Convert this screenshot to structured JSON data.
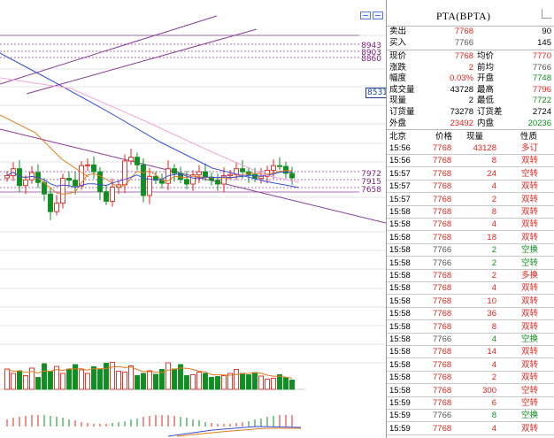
{
  "colors": {
    "up": "#e0251c",
    "down": "#0e8f21",
    "flat": "#555555",
    "purple_line": "#8a3a9c",
    "blue_ma": "#3a4fd6",
    "pink_ma": "#f2a6d6",
    "orange_ma": "#e07b1e"
  },
  "chart": {
    "price_levels": [
      "8943",
      "8903",
      "8860"
    ],
    "mid_price_tag": "8531",
    "lower_levels": [
      "7972",
      "7915",
      "7658"
    ],
    "zoom_buttons": [
      "zoom-in-icon",
      "zoom-out-icon"
    ]
  },
  "chart_data": {
    "type": "candlestick",
    "series": [
      {
        "name": "",
        "values": [
          7742,
          7760,
          7716,
          7731,
          7750,
          7724,
          7694,
          7648,
          7670,
          7735,
          7730,
          7715,
          7768,
          7770,
          7752,
          7700,
          7675,
          7712,
          7718,
          7780,
          7790,
          7770,
          7690,
          7740,
          7730,
          7722,
          7760,
          7748,
          7732,
          7720,
          7744,
          7752,
          7738,
          7730,
          7720,
          7742,
          7745,
          7760,
          7752,
          7745,
          7735,
          7740,
          7756,
          7768,
          7766,
          7748,
          7736
        ]
      },
      {
        "name": "",
        "values": [
          46,
          36,
          42,
          31,
          48,
          27,
          58,
          40,
          52,
          36,
          46,
          56,
          44,
          36,
          51,
          46,
          59,
          61,
          41,
          39,
          53,
          31,
          36,
          42,
          34,
          45,
          60,
          46,
          56,
          31,
          33,
          39,
          36,
          27,
          29,
          31,
          36,
          45,
          36,
          33,
          38,
          30,
          23,
          25,
          33,
          26,
          21
        ]
      }
    ]
  },
  "panel": {
    "title": "PTA(BPTA)",
    "sell": {
      "label": "卖出",
      "price": "7768",
      "vol": "90"
    },
    "buy": {
      "label": "买入",
      "price": "7766",
      "vol": "145"
    },
    "stats": [
      {
        "k1": "现价",
        "v1": "7768",
        "c1": "red",
        "k2": "均价",
        "v2": "7770",
        "c2": "red"
      },
      {
        "k1": "涨跌",
        "v1": "2",
        "c1": "red",
        "k2": "前均",
        "v2": "7766",
        "c2": "gray"
      },
      {
        "k1": "幅度",
        "v1": "0.03%",
        "c1": "red",
        "k2": "开盘",
        "v2": "7748",
        "c2": "green"
      },
      {
        "k1": "成交量",
        "v1": "43728",
        "c1": "blk",
        "k2": "最高",
        "v2": "7796",
        "c2": "red"
      },
      {
        "k1": "现量",
        "v1": "2",
        "c1": "blk",
        "k2": "最低",
        "v2": "7722",
        "c2": "green"
      },
      {
        "k1": "订货量",
        "v1": "73278",
        "c1": "blk",
        "k2": "订货差",
        "v2": "2724",
        "c2": "blk"
      },
      {
        "k1": "外盘",
        "v1": "23492",
        "c1": "red",
        "k2": "内盘",
        "v2": "20236",
        "c2": "green"
      }
    ],
    "trade_header": {
      "time": "北京",
      "price": "价格",
      "vol": "现量",
      "nature": "性质"
    },
    "trades": [
      {
        "time": "15:56",
        "price": "7768",
        "pc": "red",
        "vol": "43128",
        "vc": "red",
        "nature": "多订",
        "nc": "red"
      },
      {
        "time": "15:56",
        "price": "7768",
        "pc": "red",
        "vol": "8",
        "vc": "red",
        "nature": "双转",
        "nc": "red"
      },
      {
        "time": "15:57",
        "price": "7768",
        "pc": "red",
        "vol": "24",
        "vc": "red",
        "nature": "空转",
        "nc": "red"
      },
      {
        "time": "15:57",
        "price": "7768",
        "pc": "red",
        "vol": "4",
        "vc": "red",
        "nature": "双转",
        "nc": "red"
      },
      {
        "time": "15:57",
        "price": "7768",
        "pc": "red",
        "vol": "2",
        "vc": "red",
        "nature": "双转",
        "nc": "red"
      },
      {
        "time": "15:58",
        "price": "7768",
        "pc": "red",
        "vol": "8",
        "vc": "red",
        "nature": "双转",
        "nc": "red"
      },
      {
        "time": "15:58",
        "price": "7768",
        "pc": "red",
        "vol": "4",
        "vc": "red",
        "nature": "双转",
        "nc": "red"
      },
      {
        "time": "15:58",
        "price": "7768",
        "pc": "red",
        "vol": "18",
        "vc": "red",
        "nature": "双转",
        "nc": "red"
      },
      {
        "time": "15:58",
        "price": "7766",
        "pc": "gray",
        "vol": "2",
        "vc": "green",
        "nature": "空换",
        "nc": "green"
      },
      {
        "time": "15:58",
        "price": "7766",
        "pc": "gray",
        "vol": "2",
        "vc": "green",
        "nature": "空转",
        "nc": "green"
      },
      {
        "time": "15:58",
        "price": "7768",
        "pc": "red",
        "vol": "2",
        "vc": "red",
        "nature": "多换",
        "nc": "red"
      },
      {
        "time": "15:58",
        "price": "7768",
        "pc": "red",
        "vol": "4",
        "vc": "red",
        "nature": "双转",
        "nc": "red"
      },
      {
        "time": "15:58",
        "price": "7768",
        "pc": "red",
        "vol": "10",
        "vc": "red",
        "nature": "双转",
        "nc": "red"
      },
      {
        "time": "15:58",
        "price": "7768",
        "pc": "red",
        "vol": "36",
        "vc": "red",
        "nature": "双转",
        "nc": "red"
      },
      {
        "time": "15:58",
        "price": "7768",
        "pc": "red",
        "vol": "8",
        "vc": "red",
        "nature": "双转",
        "nc": "red"
      },
      {
        "time": "15:58",
        "price": "7766",
        "pc": "gray",
        "vol": "4",
        "vc": "green",
        "nature": "空换",
        "nc": "green"
      },
      {
        "time": "15:58",
        "price": "7768",
        "pc": "red",
        "vol": "14",
        "vc": "red",
        "nature": "双转",
        "nc": "red"
      },
      {
        "time": "15:58",
        "price": "7768",
        "pc": "red",
        "vol": "4",
        "vc": "red",
        "nature": "双转",
        "nc": "red"
      },
      {
        "time": "15:58",
        "price": "7768",
        "pc": "red",
        "vol": "2",
        "vc": "red",
        "nature": "双转",
        "nc": "red"
      },
      {
        "time": "15:58",
        "price": "7768",
        "pc": "red",
        "vol": "300",
        "vc": "red",
        "nature": "空转",
        "nc": "red"
      },
      {
        "time": "15:59",
        "price": "7768",
        "pc": "red",
        "vol": "6",
        "vc": "red",
        "nature": "空转",
        "nc": "red"
      },
      {
        "time": "15:59",
        "price": "7766",
        "pc": "gray",
        "vol": "8",
        "vc": "green",
        "nature": "空换",
        "nc": "green"
      },
      {
        "time": "15:59",
        "price": "7768",
        "pc": "red",
        "vol": "4",
        "vc": "red",
        "nature": "双转",
        "nc": "red"
      }
    ]
  }
}
